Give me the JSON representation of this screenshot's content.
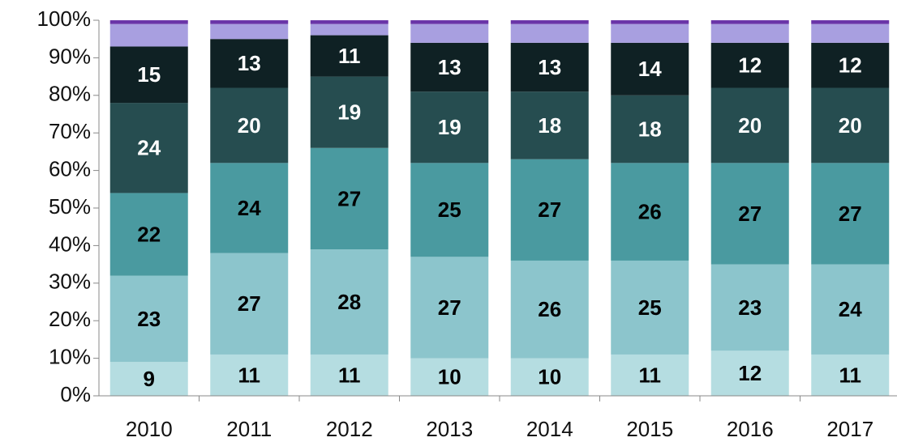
{
  "chart_data": {
    "type": "stacked_bar",
    "categories": [
      "2010",
      "2011",
      "2012",
      "2013",
      "2014",
      "2015",
      "2016",
      "2017"
    ],
    "series": [
      {
        "color": "#b5dde1",
        "values": [
          9,
          11,
          11,
          10,
          10,
          11,
          12,
          11
        ]
      },
      {
        "color": "#8cc5cc",
        "values": [
          23,
          27,
          28,
          27,
          26,
          25,
          23,
          24
        ]
      },
      {
        "color": "#4a9aa0",
        "values": [
          22,
          24,
          27,
          25,
          27,
          26,
          27,
          27
        ]
      },
      {
        "color": "#264d50",
        "values": [
          24,
          20,
          19,
          19,
          18,
          18,
          20,
          20
        ]
      },
      {
        "color": "#0f2124",
        "values": [
          15,
          13,
          11,
          13,
          13,
          14,
          12,
          12
        ]
      },
      {
        "color": "#a89fe0",
        "values": [
          6,
          4,
          3,
          5,
          5,
          5,
          5,
          5
        ]
      },
      {
        "color": "#6a35a8",
        "values": [
          1,
          1,
          1,
          1,
          1,
          1,
          1,
          1
        ]
      }
    ],
    "data_labels": [
      true,
      true,
      true,
      true,
      true,
      false,
      false
    ],
    "ylim": [
      0,
      100
    ],
    "yticks": [
      {
        "value": 0,
        "label": "0%"
      },
      {
        "value": 10,
        "label": "10%"
      },
      {
        "value": 20,
        "label": "20%"
      },
      {
        "value": 30,
        "label": "30%"
      },
      {
        "value": 40,
        "label": "40%"
      },
      {
        "value": 50,
        "label": "50%"
      },
      {
        "value": 60,
        "label": "60%"
      },
      {
        "value": 70,
        "label": "70%"
      },
      {
        "value": 80,
        "label": "80%"
      },
      {
        "value": 90,
        "label": "90%"
      },
      {
        "value": 100,
        "label": "100%"
      }
    ],
    "grid": false
  }
}
